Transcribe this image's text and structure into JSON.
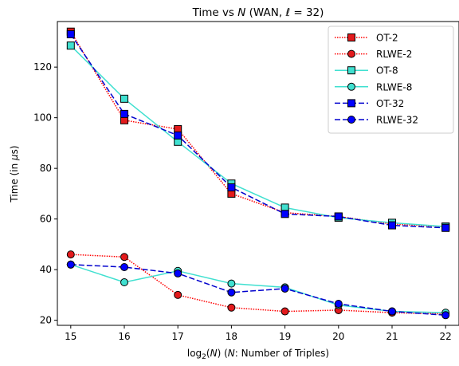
{
  "chart_data": {
    "type": "line",
    "title": "Time vs N (WAN, ℓ = 32)",
    "title_parts": {
      "pre": "Time vs ",
      "italic_n": "N",
      "mid": " (WAN, ",
      "italic_l": "ℓ",
      "post": " = 32)"
    },
    "xlabel": "log2(N) (N: Number of Triples)",
    "xlabel_parts": {
      "a": "log",
      "sub": "2",
      "b": "(",
      "n1": "N",
      "c": ") (",
      "n2": "N",
      "d": ": Number of Triples)"
    },
    "ylabel": "Time (in µs)",
    "ylabel_parts": {
      "a": "Time (in ",
      "mu": "µ",
      "b": "s)"
    },
    "x": [
      15,
      16,
      17,
      18,
      19,
      20,
      21,
      22
    ],
    "xlim": [
      14.75,
      22.25
    ],
    "ylim": [
      18,
      138
    ],
    "xticks": [
      "15",
      "16",
      "17",
      "18",
      "19",
      "20",
      "21",
      "22"
    ],
    "yticks": [
      "20",
      "40",
      "60",
      "80",
      "100",
      "120"
    ],
    "grid": false,
    "legend_position": "top-right",
    "series": [
      {
        "name": "OT-2",
        "values": [
          134.0,
          99.0,
          95.5,
          70.0,
          62.5,
          61.0,
          58.0,
          57.0
        ],
        "color": "#ff0000",
        "marker_fill": "#e31a1c",
        "dash": "1.5 1.5",
        "marker": "square"
      },
      {
        "name": "RLWE-2",
        "values": [
          46.0,
          45.0,
          30.0,
          25.0,
          23.5,
          24.0,
          23.0,
          22.5
        ],
        "color": "#ff0000",
        "marker_fill": "#e31a1c",
        "dash": "1.5 1.5",
        "marker": "circle"
      },
      {
        "name": "OT-8",
        "values": [
          128.5,
          107.5,
          90.5,
          74.0,
          64.5,
          60.5,
          58.5,
          57.0
        ],
        "color": "#40e0d0",
        "marker_fill": "#40e0d0",
        "dash": "",
        "marker": "square"
      },
      {
        "name": "RLWE-8",
        "values": [
          42.0,
          35.0,
          39.5,
          34.5,
          33.0,
          26.0,
          23.5,
          23.0
        ],
        "color": "#40e0d0",
        "marker_fill": "#40e0d0",
        "dash": "",
        "marker": "circle"
      },
      {
        "name": "OT-32",
        "values": [
          133.0,
          101.5,
          93.0,
          72.5,
          62.0,
          61.0,
          57.5,
          56.5
        ],
        "color": "#0000cd",
        "marker_fill": "#0000ff",
        "dash": "7 3",
        "marker": "square"
      },
      {
        "name": "RLWE-32",
        "values": [
          42.0,
          41.0,
          38.5,
          31.0,
          32.5,
          26.5,
          23.5,
          22.0
        ],
        "color": "#0000cd",
        "marker_fill": "#0000ff",
        "dash": "7 3",
        "marker": "circle"
      }
    ]
  }
}
